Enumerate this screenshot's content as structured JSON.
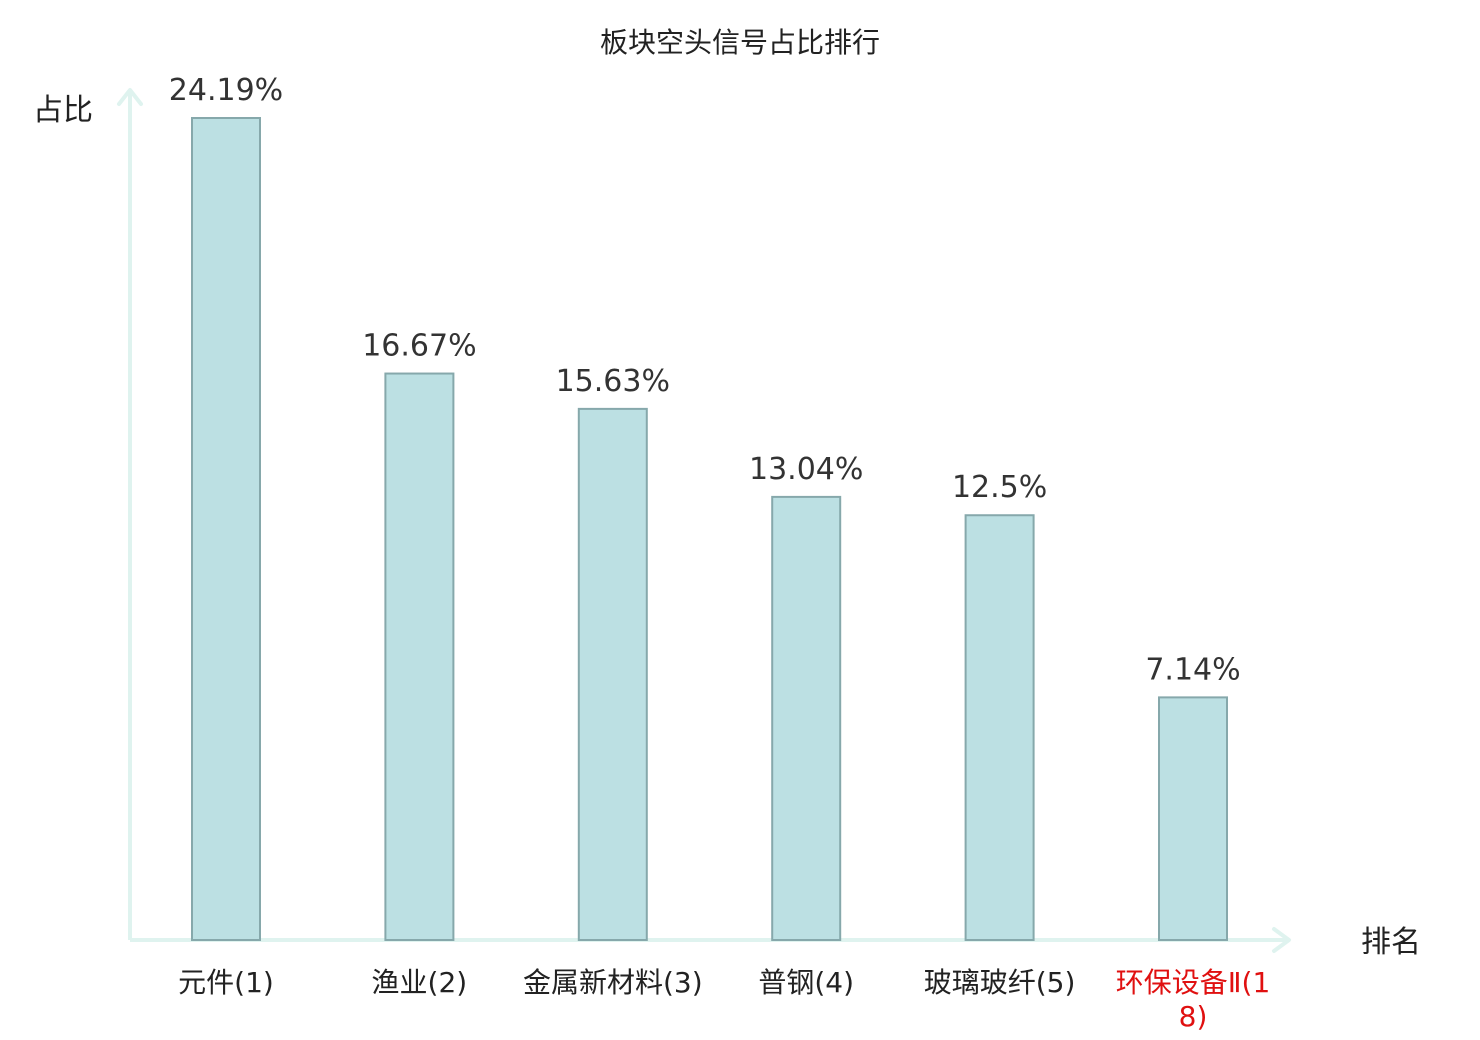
{
  "chart_data": {
    "type": "bar",
    "title": "板块空头信号占比排行",
    "xlabel": "排名",
    "ylabel": "占比",
    "categories": [
      "元件(1)",
      "渔业(2)",
      "金属新材料(3)",
      "普钢(4)",
      "玻璃玻纤(5)",
      "环保设备Ⅱ(18)"
    ],
    "values": [
      24.19,
      16.67,
      15.63,
      13.04,
      12.5,
      7.14
    ],
    "value_labels": [
      "24.19%",
      "16.67%",
      "15.63%",
      "13.04%",
      "12.5%",
      "7.14%"
    ],
    "ylim": [
      0,
      24.19
    ],
    "grid": false,
    "highlight_index": 5,
    "colors": {
      "bar_fill": "#bce0e3",
      "bar_stroke": "#86a8ab",
      "axis": "#dff3ef",
      "text": "#222222",
      "value_text": "#333333",
      "highlight": "#e01010"
    }
  }
}
